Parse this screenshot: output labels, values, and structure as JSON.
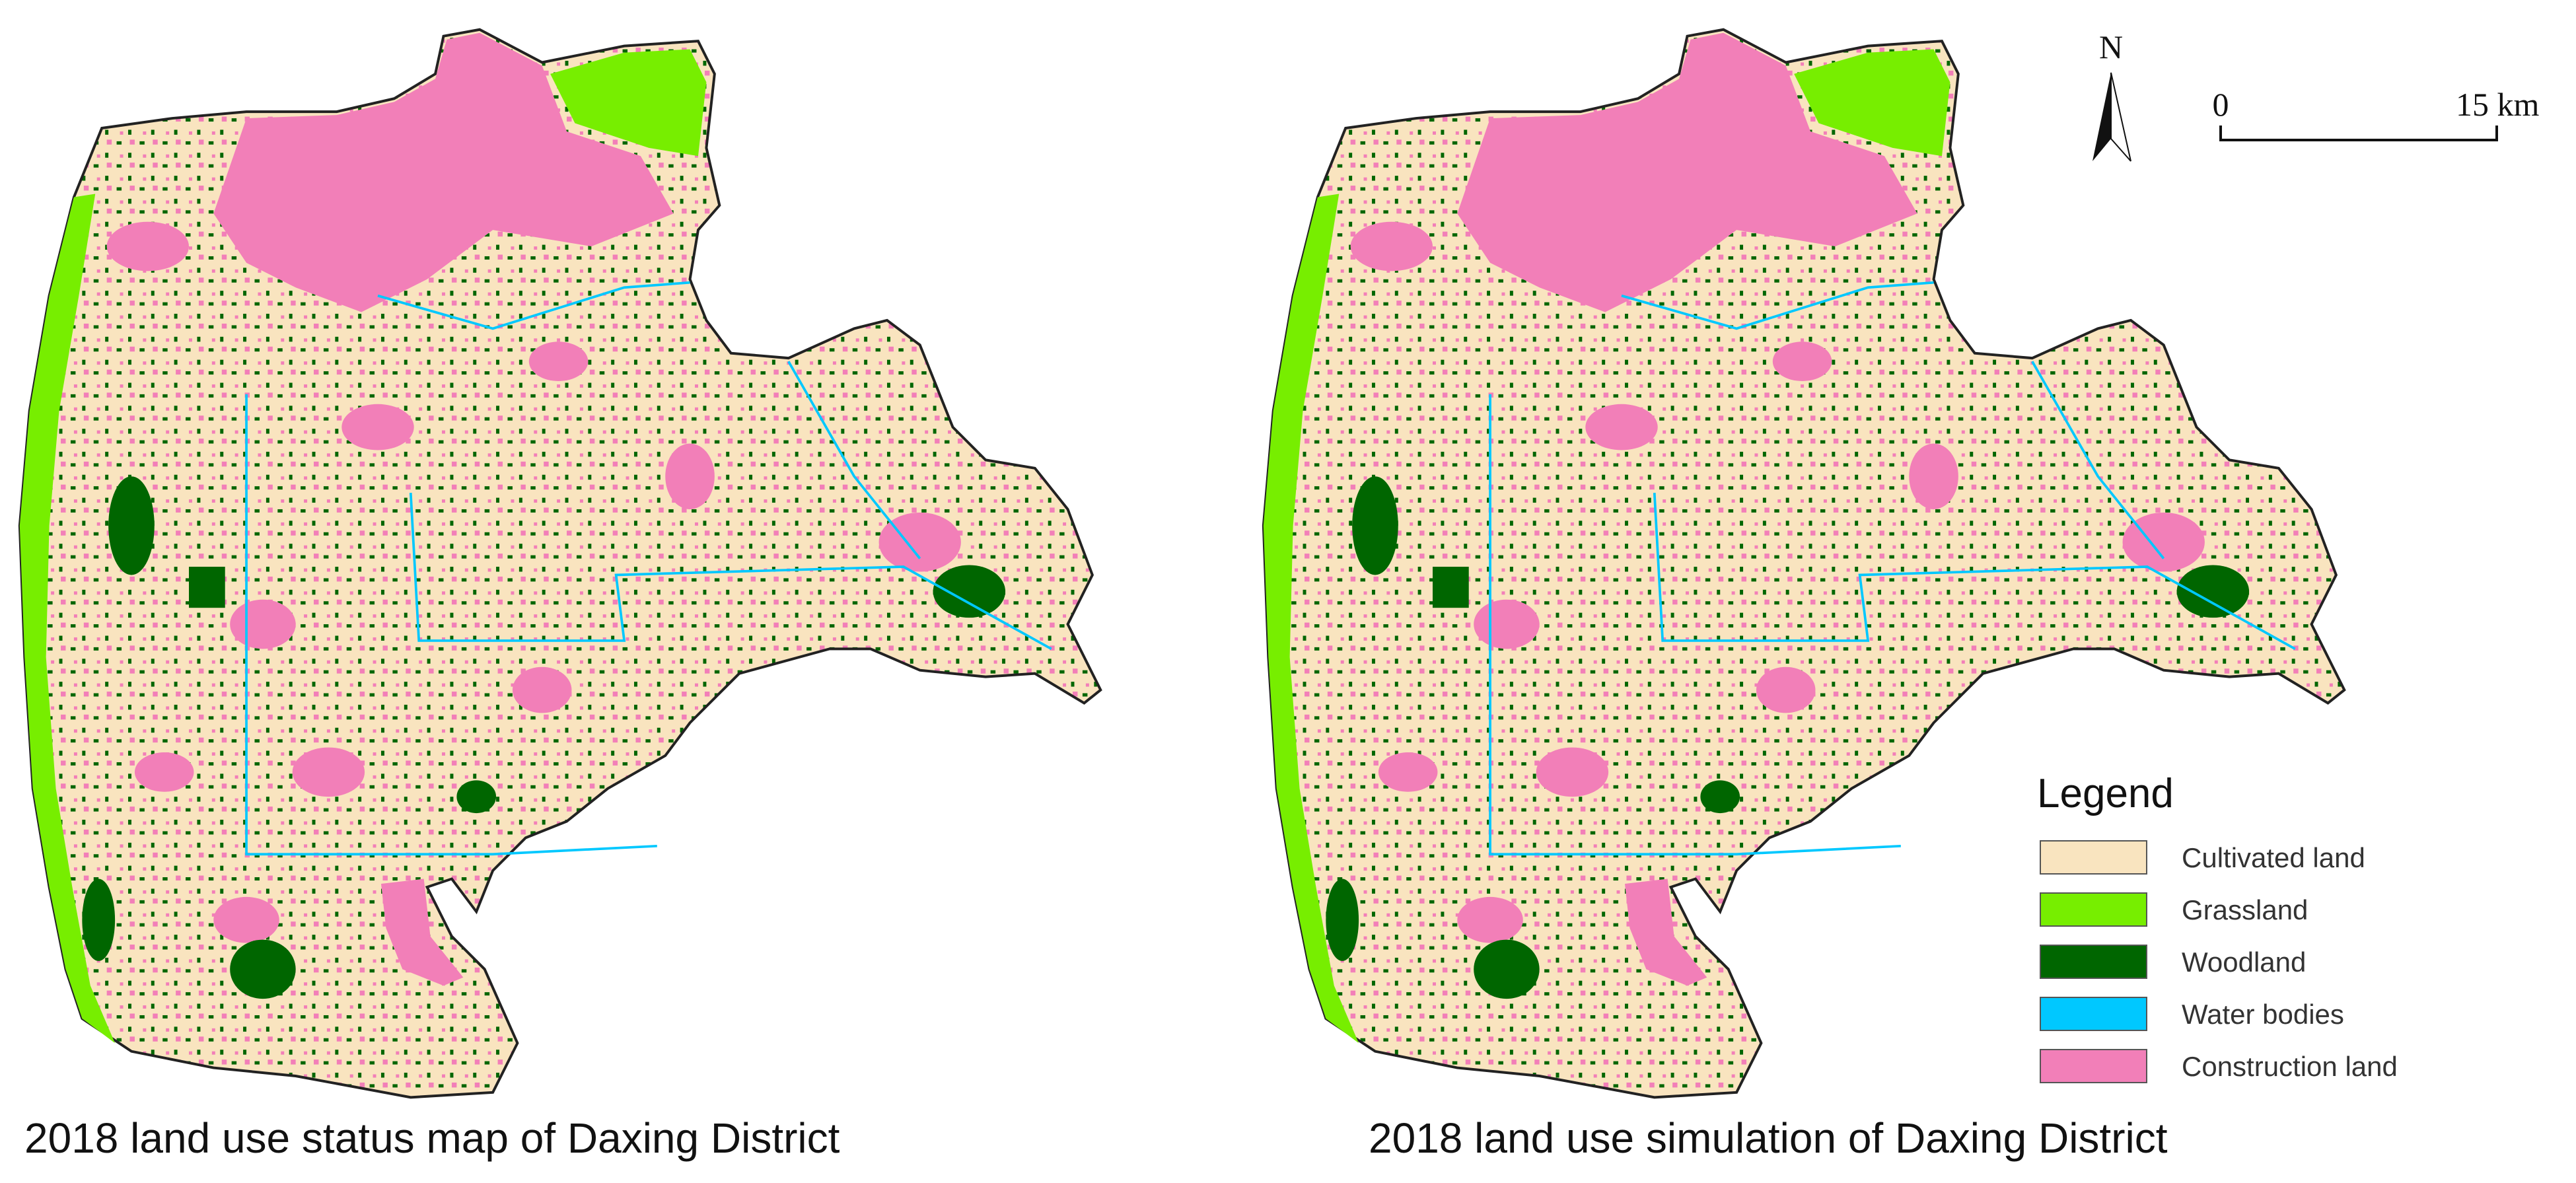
{
  "maps": [
    {
      "title": "2018 land use status map of Daxing District"
    },
    {
      "title": "2018 land use simulation of Daxing District"
    }
  ],
  "north_arrow": {
    "label": "N"
  },
  "scale_bar": {
    "start": "0",
    "end": "15 km"
  },
  "legend": {
    "title": "Legend",
    "items": [
      {
        "label": "Cultivated land",
        "color": "#f9e4bf"
      },
      {
        "label": "Grassland",
        "color": "#77ee00"
      },
      {
        "label": "Woodland",
        "color": "#006600"
      },
      {
        "label": "Water bodies",
        "color": "#00c8ff"
      },
      {
        "label": "Construction land",
        "color": "#f27fb8"
      }
    ]
  }
}
